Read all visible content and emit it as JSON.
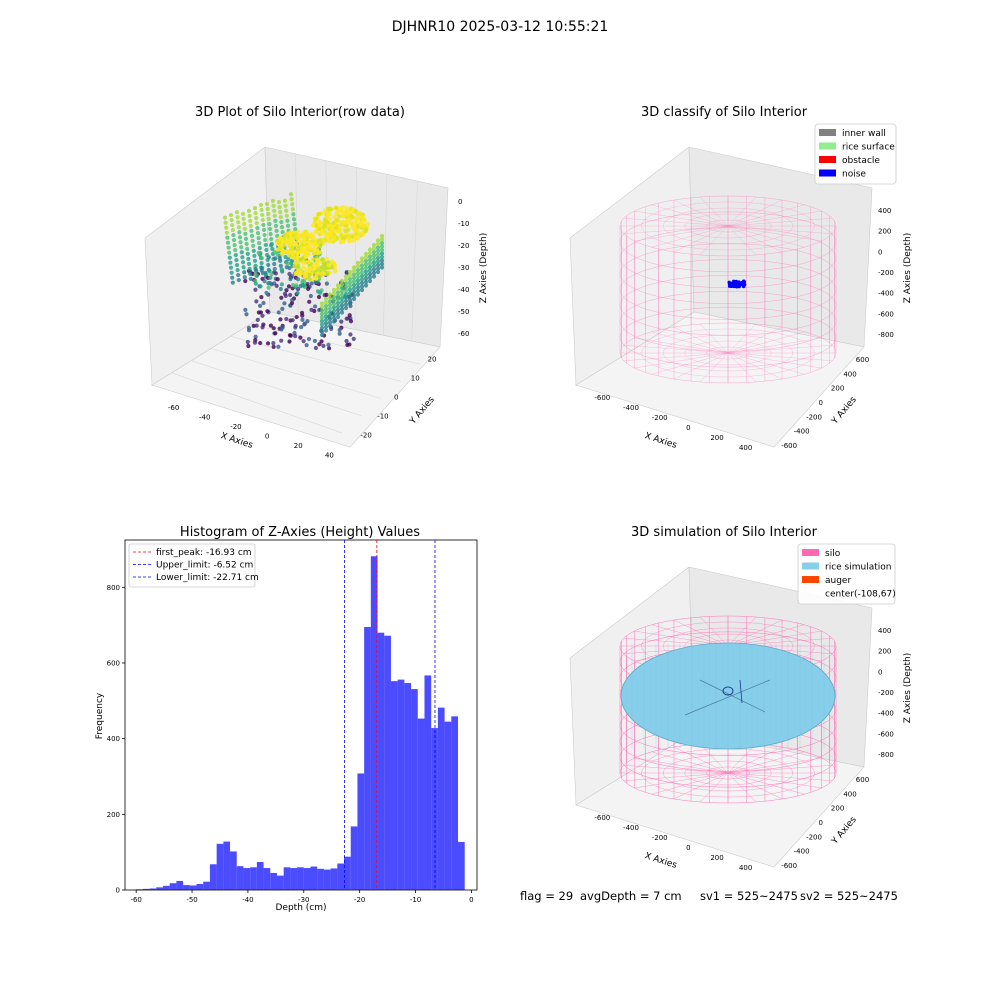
{
  "figure_title": "DJHNR10 2025-03-12 10:55:21",
  "panels": {
    "raw": {
      "title": "3D Plot of Silo Interior(row data)",
      "x_label": "X Axies",
      "y_label": "Y Axies",
      "z_label": "Z Axies (Depth)",
      "x_ticks": [
        "-60",
        "-40",
        "-20",
        "0",
        "20",
        "40"
      ],
      "y_ticks": [
        "-20",
        "-10",
        "0",
        "10",
        "20"
      ],
      "z_ticks": [
        "0",
        "-10",
        "-20",
        "-30",
        "-40",
        "-50",
        "-60"
      ],
      "colormap": "viridis"
    },
    "classify": {
      "title": "3D classify of Silo Interior",
      "x_label": "X Axies",
      "y_label": "Y Axies",
      "z_label": "Z Axies (Depth)",
      "x_ticks": [
        "-600",
        "-400",
        "-200",
        "0",
        "200",
        "400"
      ],
      "y_ticks": [
        "-600",
        "-400",
        "-200",
        "0",
        "200",
        "400",
        "600"
      ],
      "z_ticks": [
        "400",
        "200",
        "0",
        "-200",
        "-400",
        "-600",
        "-800"
      ],
      "legend": [
        {
          "label": "inner wall",
          "color": "#808080"
        },
        {
          "label": "rice surface",
          "color": "#90ee90"
        },
        {
          "label": "obstacle",
          "color": "#ff0000"
        },
        {
          "label": "noise",
          "color": "#0000ff"
        }
      ]
    },
    "simulation": {
      "title": "3D simulation of Silo Interior",
      "x_label": "X Axies",
      "y_label": "Y Axies",
      "z_label": "Z Axies (Depth)",
      "x_ticks": [
        "-600",
        "-400",
        "-200",
        "0",
        "200",
        "400"
      ],
      "y_ticks": [
        "-600",
        "-400",
        "-200",
        "0",
        "200",
        "400",
        "600"
      ],
      "z_ticks": [
        "400",
        "200",
        "0",
        "-200",
        "-400",
        "-600",
        "-800"
      ],
      "legend": [
        {
          "label": "silo",
          "color": "#ff69b4"
        },
        {
          "label": "rice simulation",
          "color": "#87ceeb"
        },
        {
          "label": "auger",
          "color": "#ff4500"
        },
        {
          "label": "center(-108,67)",
          "color": ""
        }
      ]
    }
  },
  "chart_data": {
    "type": "bar",
    "title": "Histogram of Z-Axies (Height) Values",
    "xlabel": "Depth (cm)",
    "ylabel": "Frequency",
    "xlim": [
      -62,
      1
    ],
    "ylim": [
      0,
      925
    ],
    "x_ticks": [
      -60,
      -50,
      -40,
      -30,
      -20,
      -10,
      0
    ],
    "y_ticks": [
      0,
      200,
      400,
      600,
      800
    ],
    "bar_color": "#0000ff",
    "bin_edges": [
      -60.0,
      -58.8,
      -57.6,
      -56.4,
      -55.2,
      -54.0,
      -52.8,
      -51.6,
      -50.4,
      -49.2,
      -48.0,
      -46.8,
      -45.6,
      -44.4,
      -43.2,
      -42.0,
      -40.8,
      -39.6,
      -38.4,
      -37.2,
      -36.0,
      -34.8,
      -33.6,
      -32.4,
      -31.2,
      -30.0,
      -28.8,
      -27.6,
      -26.4,
      -25.2,
      -24.0,
      -22.8,
      -21.6,
      -20.4,
      -19.2,
      -18.0,
      -16.8,
      -15.6,
      -14.4,
      -13.2,
      -12.0,
      -10.8,
      -9.6,
      -8.4,
      -7.2,
      -6.0,
      -4.8,
      -3.6,
      -2.4,
      -1.2
    ],
    "values": [
      2,
      3,
      4,
      7,
      11,
      18,
      24,
      13,
      12,
      16,
      22,
      68,
      122,
      128,
      102,
      63,
      58,
      60,
      74,
      58,
      45,
      38,
      60,
      58,
      60,
      58,
      62,
      56,
      54,
      57,
      70,
      88,
      168,
      308,
      695,
      882,
      680,
      672,
      552,
      556,
      547,
      531,
      453,
      567,
      428,
      482,
      445,
      459,
      127
    ],
    "vlines": [
      {
        "label": "first_peak: -16.93 cm",
        "x": -16.93,
        "color": "#ff0000"
      },
      {
        "label": "Upper_limit: -6.52 cm",
        "x": -6.52,
        "color": "#0000ff"
      },
      {
        "label": "Lower_limit: -22.71 cm",
        "x": -22.71,
        "color": "#0000ff"
      }
    ],
    "legend_position": "upper left"
  },
  "footer": {
    "flag": "flag = 29",
    "avg_depth": "avgDepth = 7 cm",
    "sv1": "sv1 = 525~2475",
    "sv2": "sv2 = 525~2475"
  }
}
